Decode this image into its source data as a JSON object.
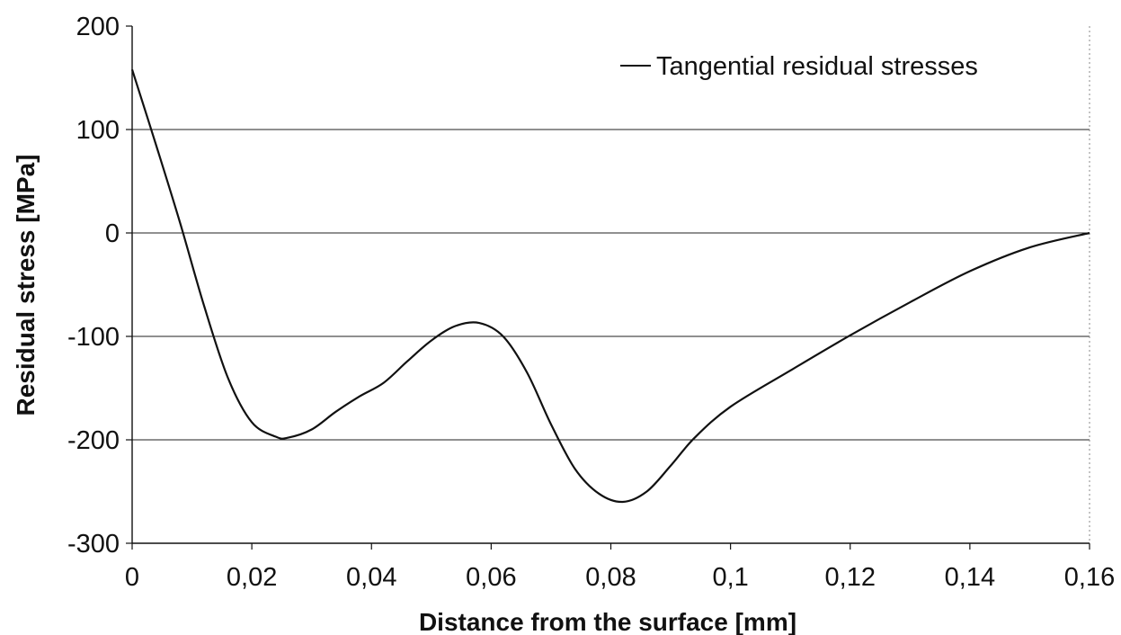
{
  "chart_data": {
    "type": "line",
    "title": "",
    "xlabel": "Distance from the surface [mm]",
    "ylabel": "Residual stress [MPa]",
    "xlim": [
      0,
      0.16
    ],
    "ylim": [
      -300,
      200
    ],
    "x_ticks": [
      "0",
      "0,02",
      "0,04",
      "0,06",
      "0,08",
      "0,1",
      "0,12",
      "0,14",
      "0,16"
    ],
    "y_ticks": [
      "200",
      "100",
      "0",
      "-100",
      "-200",
      "-300"
    ],
    "grid": "horizontal",
    "legend_position": "top-right",
    "series": [
      {
        "name": "Tangential residual stresses",
        "color": "#111111",
        "x": [
          0,
          0.004,
          0.008,
          0.012,
          0.016,
          0.02,
          0.024,
          0.026,
          0.03,
          0.034,
          0.038,
          0.042,
          0.046,
          0.05,
          0.054,
          0.058,
          0.062,
          0.066,
          0.07,
          0.074,
          0.078,
          0.082,
          0.086,
          0.09,
          0.094,
          0.1,
          0.11,
          0.12,
          0.13,
          0.14,
          0.15,
          0.16
        ],
        "y": [
          158,
          85,
          10,
          -70,
          -140,
          -183,
          -197,
          -198,
          -190,
          -173,
          -158,
          -145,
          -124,
          -104,
          -90,
          -87,
          -100,
          -135,
          -185,
          -228,
          -252,
          -260,
          -250,
          -225,
          -198,
          -168,
          -133,
          -99,
          -67,
          -37,
          -14,
          0
        ]
      }
    ]
  }
}
